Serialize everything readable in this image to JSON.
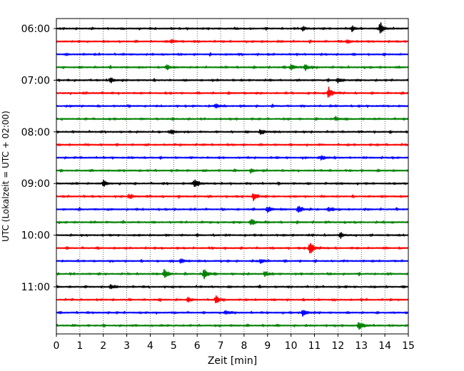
{
  "chart_data": {
    "type": "line",
    "subtype": "helicorder",
    "xlabel": "Zeit  [min]",
    "ylabel": "UTC (Lokalzeit = UTC + 02:00)",
    "xlim": [
      0,
      15
    ],
    "x_ticks": [
      "0",
      "1",
      "2",
      "3",
      "4",
      "5",
      "6",
      "7",
      "8",
      "9",
      "10",
      "11",
      "12",
      "13",
      "14",
      "15"
    ],
    "y_time_labels": [
      "06:00",
      "07:00",
      "08:00",
      "09:00",
      "10:00",
      "11:00"
    ],
    "trace_start": "06:00",
    "trace_interval_minutes": 15,
    "trace_count": 24,
    "trace_colors": [
      "#000000",
      "#ff0000",
      "#0000ff",
      "#008000"
    ],
    "vertical_grid": "dotted",
    "events": [
      {
        "trace": 0,
        "minute": 13.8,
        "amp": 1.0
      },
      {
        "trace": 0,
        "minute": 12.6,
        "amp": 0.35
      },
      {
        "trace": 0,
        "minute": 10.5,
        "amp": 0.3
      },
      {
        "trace": 1,
        "minute": 4.9,
        "amp": 0.3
      },
      {
        "trace": 1,
        "minute": 12.4,
        "amp": 0.35
      },
      {
        "trace": 3,
        "minute": 4.7,
        "amp": 0.45
      },
      {
        "trace": 3,
        "minute": 10.0,
        "amp": 0.5
      },
      {
        "trace": 3,
        "minute": 10.6,
        "amp": 0.55
      },
      {
        "trace": 4,
        "minute": 2.3,
        "amp": 0.45
      },
      {
        "trace": 4,
        "minute": 12.0,
        "amp": 0.4
      },
      {
        "trace": 5,
        "minute": 11.6,
        "amp": 1.0
      },
      {
        "trace": 6,
        "minute": 6.8,
        "amp": 0.3
      },
      {
        "trace": 7,
        "minute": 11.9,
        "amp": 0.35
      },
      {
        "trace": 8,
        "minute": 4.9,
        "amp": 0.4
      },
      {
        "trace": 8,
        "minute": 8.7,
        "amp": 0.4
      },
      {
        "trace": 10,
        "minute": 11.3,
        "amp": 0.45
      },
      {
        "trace": 11,
        "minute": 8.3,
        "amp": 0.3
      },
      {
        "trace": 12,
        "minute": 2.0,
        "amp": 0.4
      },
      {
        "trace": 12,
        "minute": 5.9,
        "amp": 0.7
      },
      {
        "trace": 13,
        "minute": 3.1,
        "amp": 0.35
      },
      {
        "trace": 13,
        "minute": 8.4,
        "amp": 0.6
      },
      {
        "trace": 14,
        "minute": 9.0,
        "amp": 0.5
      },
      {
        "trace": 14,
        "minute": 10.3,
        "amp": 0.65
      },
      {
        "trace": 14,
        "minute": 11.6,
        "amp": 0.35
      },
      {
        "trace": 15,
        "minute": 8.3,
        "amp": 0.55
      },
      {
        "trace": 16,
        "minute": 12.1,
        "amp": 0.3
      },
      {
        "trace": 17,
        "minute": 10.8,
        "amp": 1.2
      },
      {
        "trace": 18,
        "minute": 5.3,
        "amp": 0.4
      },
      {
        "trace": 18,
        "minute": 8.7,
        "amp": 0.35
      },
      {
        "trace": 19,
        "minute": 4.6,
        "amp": 0.7
      },
      {
        "trace": 19,
        "minute": 6.3,
        "amp": 0.9
      },
      {
        "trace": 19,
        "minute": 8.9,
        "amp": 0.4
      },
      {
        "trace": 20,
        "minute": 2.3,
        "amp": 0.3
      },
      {
        "trace": 21,
        "minute": 6.8,
        "amp": 0.6
      },
      {
        "trace": 21,
        "minute": 5.6,
        "amp": 0.3
      },
      {
        "trace": 22,
        "minute": 10.5,
        "amp": 0.55
      },
      {
        "trace": 22,
        "minute": 7.2,
        "amp": 0.3
      },
      {
        "trace": 23,
        "minute": 12.9,
        "amp": 0.7
      }
    ]
  }
}
